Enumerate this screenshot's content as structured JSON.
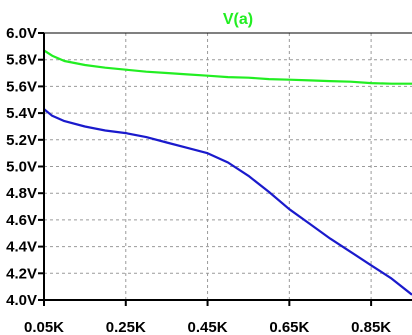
{
  "chart_data": {
    "type": "line",
    "title": "",
    "xlabel": "",
    "ylabel": "",
    "xlim": [
      0.05,
      0.95
    ],
    "ylim": [
      4.0,
      6.0
    ],
    "grid": true,
    "x_ticks": [
      0.05,
      0.25,
      0.45,
      0.65,
      0.85
    ],
    "x_tick_labels": [
      "0.05K",
      "0.25K",
      "0.45K",
      "0.65K",
      "0.85K"
    ],
    "y_ticks": [
      4.0,
      4.2,
      4.4,
      4.6,
      4.8,
      5.0,
      5.2,
      5.4,
      5.6,
      5.8,
      6.0
    ],
    "y_tick_labels": [
      "4.0V",
      "4.2V",
      "4.4V",
      "4.6V",
      "4.8V",
      "5.0V",
      "5.2V",
      "5.4V",
      "5.6V",
      "5.8V",
      "6.0V"
    ],
    "legend": {
      "placement": "top-center"
    },
    "series": [
      {
        "name": "V(a)",
        "color": "#22ee22",
        "x": [
          0.05,
          0.07,
          0.1,
          0.15,
          0.2,
          0.25,
          0.3,
          0.35,
          0.4,
          0.45,
          0.5,
          0.55,
          0.6,
          0.65,
          0.7,
          0.75,
          0.8,
          0.85,
          0.9,
          0.95
        ],
        "y": [
          5.87,
          5.83,
          5.79,
          5.76,
          5.74,
          5.725,
          5.71,
          5.7,
          5.69,
          5.68,
          5.67,
          5.665,
          5.655,
          5.65,
          5.645,
          5.64,
          5.635,
          5.625,
          5.62,
          5.62
        ]
      },
      {
        "color": "#1a1acc",
        "x": [
          0.05,
          0.07,
          0.1,
          0.15,
          0.2,
          0.25,
          0.3,
          0.35,
          0.4,
          0.45,
          0.5,
          0.55,
          0.6,
          0.65,
          0.7,
          0.75,
          0.8,
          0.85,
          0.9,
          0.95
        ],
        "y": [
          5.43,
          5.38,
          5.34,
          5.3,
          5.27,
          5.25,
          5.22,
          5.18,
          5.14,
          5.1,
          5.03,
          4.93,
          4.81,
          4.68,
          4.57,
          4.46,
          4.36,
          4.26,
          4.16,
          4.04
        ]
      }
    ]
  }
}
